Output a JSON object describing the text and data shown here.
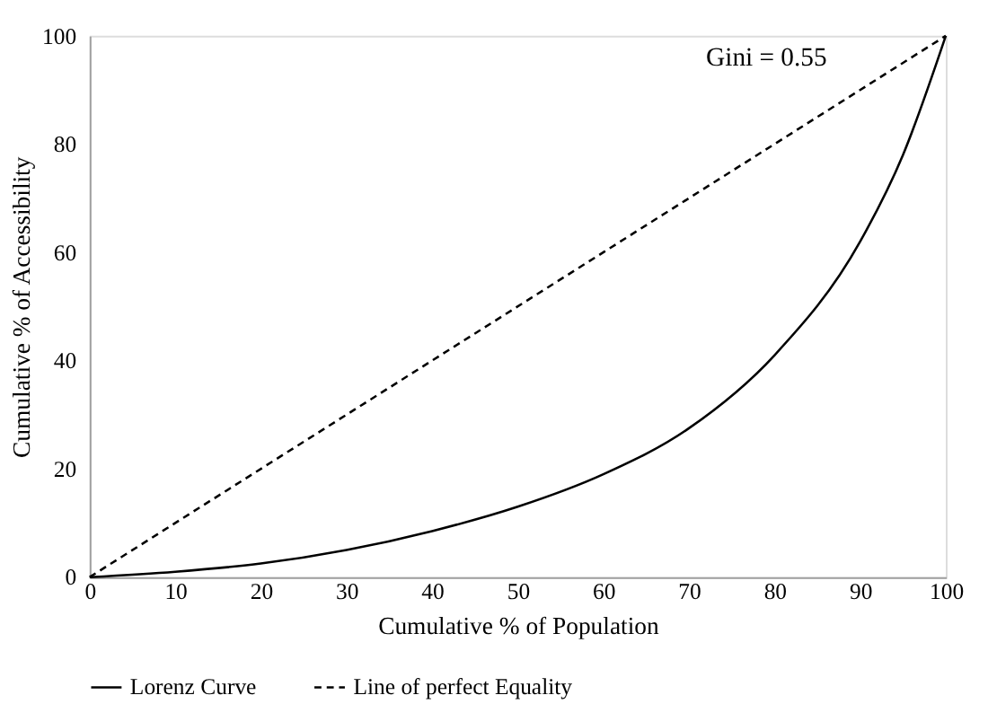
{
  "chart_data": {
    "type": "line",
    "xlabel": "Cumulative % of Population",
    "ylabel": "Cumulative % of Accessibility",
    "annotations": [
      "Gini = 0.55"
    ],
    "series": [
      {
        "name": "Lorenz Curve",
        "color": "#000000",
        "line_style": "solid",
        "x": [
          0,
          10,
          20,
          30,
          40,
          50,
          60,
          70,
          80,
          90,
          95,
          100
        ],
        "values": [
          0,
          1,
          2.5,
          5,
          8.5,
          13,
          19,
          27.5,
          41,
          62,
          78,
          100
        ]
      },
      {
        "name": "Line of perfect Equality",
        "color": "#000000",
        "line_style": "dashed",
        "x": [
          0,
          100
        ],
        "values": [
          0,
          100
        ]
      }
    ],
    "xlim": [
      0,
      100
    ],
    "xticks": [
      0,
      10,
      20,
      30,
      40,
      50,
      60,
      70,
      80,
      90,
      100
    ],
    "ylim": [
      0,
      100
    ],
    "yticks": [
      0,
      20,
      40,
      60,
      80,
      100
    ],
    "grid": false,
    "legend": "bottom",
    "marker": "none"
  }
}
